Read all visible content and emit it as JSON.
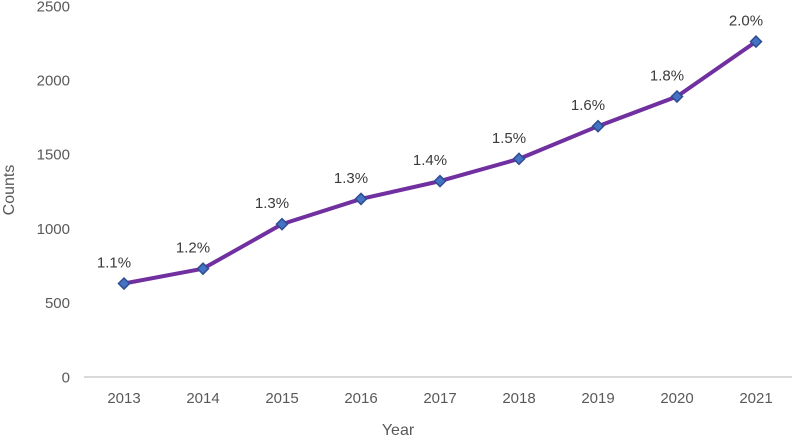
{
  "chart_data": {
    "type": "line",
    "title": "",
    "xlabel": "Year",
    "ylabel": "Counts",
    "categories": [
      "2013",
      "2014",
      "2015",
      "2016",
      "2017",
      "2018",
      "2019",
      "2020",
      "2021"
    ],
    "series": [
      {
        "name": "Counts",
        "values": [
          630,
          730,
          1030,
          1200,
          1320,
          1470,
          1690,
          1890,
          2260
        ],
        "point_labels": [
          "1.1%",
          "1.2%",
          "1.3%",
          "1.3%",
          "1.4%",
          "1.5%",
          "1.6%",
          "1.8%",
          "2.0%"
        ]
      }
    ],
    "ylim": [
      0,
      2500
    ],
    "yticks": [
      0,
      500,
      1000,
      1500,
      2000,
      2500
    ],
    "ytick_labels": [
      "0",
      "500",
      "1000",
      "1500",
      "2000",
      "2500"
    ],
    "grid": false,
    "legend": "none",
    "marker_shape": "diamond",
    "colors": {
      "line": "#7030A0",
      "marker_fill": "#4472C4",
      "marker_stroke": "#2E4D8F",
      "axis_line": "#D9D9D9",
      "tick_text": "#595959",
      "label_text": "#3B3B3B"
    }
  }
}
